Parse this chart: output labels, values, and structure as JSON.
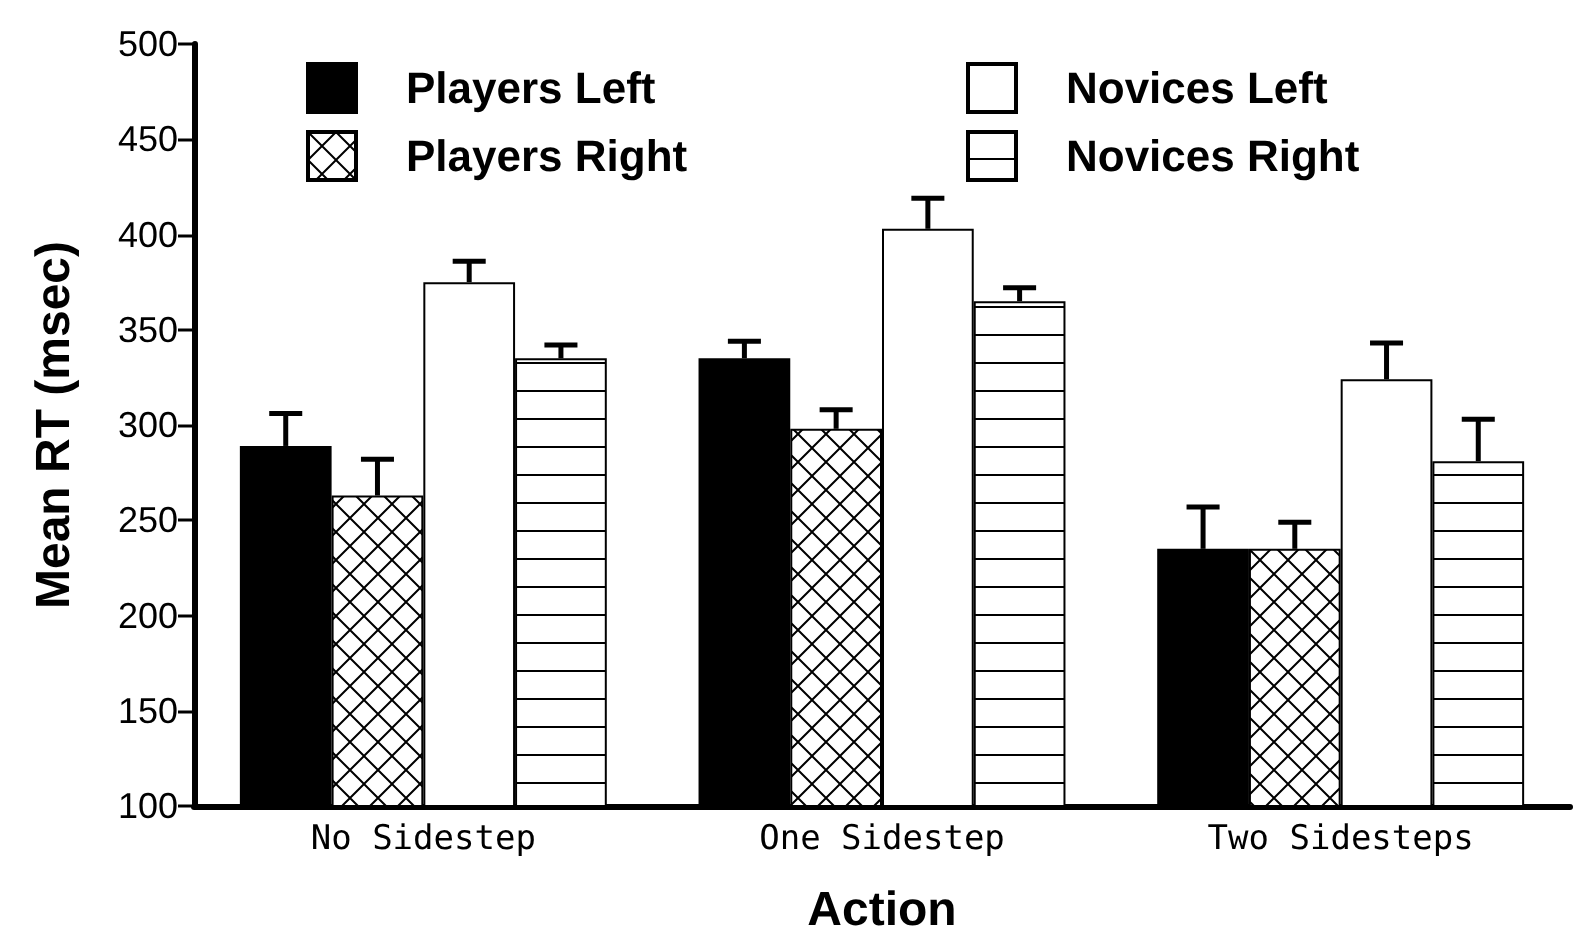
{
  "chart_data": {
    "type": "bar",
    "xlabel": "Action",
    "ylabel": "Mean RT (msec)",
    "categories": [
      "No Sidestep",
      "One Sidestep",
      "Two Sidesteps"
    ],
    "series": [
      {
        "name": "Players Left",
        "color": "#000000",
        "values": [
          289,
          335,
          235
        ],
        "errors": [
          17,
          9,
          22
        ]
      },
      {
        "name": "Players Right",
        "color": "#000000",
        "values": [
          263,
          298,
          235
        ],
        "errors": [
          19,
          10,
          14
        ]
      },
      {
        "name": "Novices Left",
        "color": "#ffffff",
        "values": [
          375,
          403,
          324
        ],
        "errors": [
          11,
          16,
          19
        ]
      },
      {
        "name": "Novices Right",
        "color": "#000000",
        "values": [
          335,
          365,
          281
        ],
        "errors": [
          7,
          7,
          22
        ]
      }
    ],
    "ylim": [
      100,
      500
    ],
    "yticks": [
      100,
      150,
      200,
      250,
      300,
      350,
      400,
      450,
      500
    ],
    "grid": false,
    "legend": "top"
  }
}
